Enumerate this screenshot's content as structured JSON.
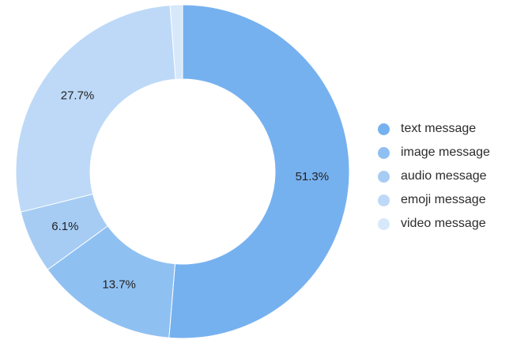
{
  "chart_data": {
    "type": "pie",
    "variant": "donut",
    "categories": [
      "text message",
      "image message",
      "audio message",
      "emoji message",
      "video message"
    ],
    "values": [
      51.3,
      13.7,
      6.1,
      27.7,
      1.2
    ],
    "labels": [
      "51.3%",
      "13.7%",
      "6.1%",
      "27.7%",
      ""
    ],
    "colors": [
      "#76b1ef",
      "#8fc0f2",
      "#a6ccf4",
      "#bdd9f7",
      "#d6e8fa"
    ],
    "start_angle": "12 o'clock",
    "direction": "clockwise",
    "legend_position": "right",
    "legend": [
      {
        "label": "text message",
        "color": "#76b1ef"
      },
      {
        "label": "image message",
        "color": "#8fc0f2"
      },
      {
        "label": "audio message",
        "color": "#a6ccf4"
      },
      {
        "label": "emoji message",
        "color": "#bdd9f7"
      },
      {
        "label": "video message",
        "color": "#d6e8fa"
      }
    ]
  }
}
